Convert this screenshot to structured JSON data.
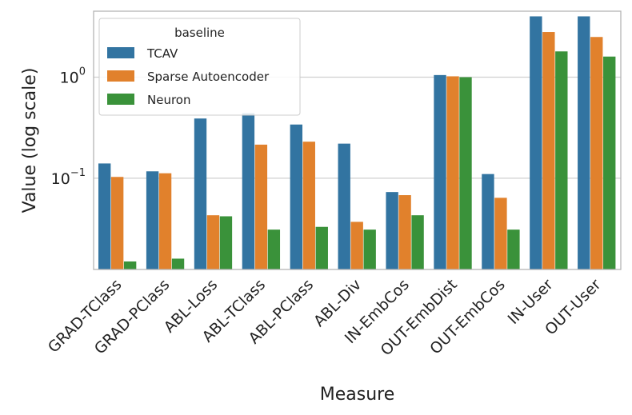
{
  "chart_data": {
    "type": "bar",
    "title": "",
    "xlabel": "Measure",
    "ylabel": "Value (log scale)",
    "yscale": "log",
    "ylim": [
      0.0125,
      4.5
    ],
    "y_ticks": [
      {
        "value": 0.1,
        "base": "10",
        "exp": "−1"
      },
      {
        "value": 1,
        "base": "10",
        "exp": "0"
      }
    ],
    "grid": "horizontal",
    "legend": {
      "title": "baseline",
      "placement": "top-left"
    },
    "categories": [
      "GRAD-TClass",
      "GRAD-PClass",
      "ABL-Loss",
      "ABL-TClass",
      "ABL-PClass",
      "ABL-Div",
      "IN-EmbCos",
      "OUT-EmbDist",
      "OUT-EmbCos",
      "IN-User",
      "OUT-User"
    ],
    "series": [
      {
        "name": "TCAV",
        "color": "#3274a1",
        "values": [
          0.14,
          0.117,
          0.39,
          0.44,
          0.34,
          0.22,
          0.073,
          1.05,
          0.11,
          4.0,
          4.0
        ]
      },
      {
        "name": "Sparse Autoencoder",
        "color": "#e1812c",
        "values": [
          0.103,
          0.112,
          0.043,
          0.215,
          0.23,
          0.037,
          0.068,
          1.02,
          0.064,
          2.8,
          2.5
        ]
      },
      {
        "name": "Neuron",
        "color": "#3a923a",
        "values": [
          0.015,
          0.016,
          0.042,
          0.031,
          0.033,
          0.031,
          0.043,
          1.0,
          0.031,
          1.8,
          1.6
        ]
      }
    ]
  }
}
